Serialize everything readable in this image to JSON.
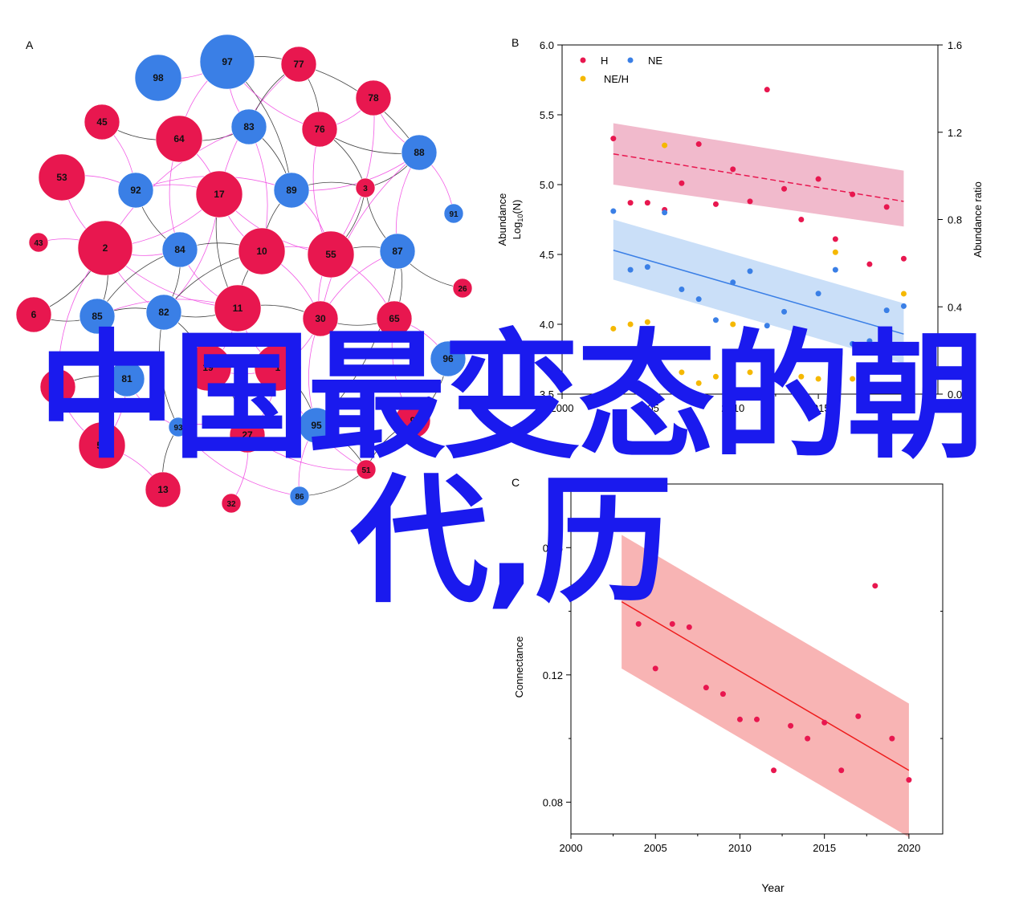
{
  "colors": {
    "red": "#e8174f",
    "blue": "#3a7fe6",
    "yellow": "#f5b800",
    "pink_band": "#efb3c7",
    "blue_band": "#c4dcf7",
    "red_band": "#f8b0b0",
    "edge_magenta": "#f03ce0",
    "edge_black": "#222222",
    "title_blue": "#1a1aee"
  },
  "overlay_title": "中国最变态的朝代,历",
  "chart_data": [
    {
      "panel": "A",
      "type": "network",
      "panel_label": "A",
      "nodes": [
        {
          "id": "97",
          "group": "blue",
          "size": 4
        },
        {
          "id": "98",
          "group": "blue",
          "size": 3
        },
        {
          "id": "77",
          "group": "red",
          "size": 2
        },
        {
          "id": "78",
          "group": "red",
          "size": 2
        },
        {
          "id": "45",
          "group": "red",
          "size": 2
        },
        {
          "id": "64",
          "group": "red",
          "size": 3
        },
        {
          "id": "83",
          "group": "blue",
          "size": 2
        },
        {
          "id": "76",
          "group": "red",
          "size": 2
        },
        {
          "id": "88",
          "group": "blue",
          "size": 2
        },
        {
          "id": "53",
          "group": "red",
          "size": 3
        },
        {
          "id": "92",
          "group": "blue",
          "size": 2
        },
        {
          "id": "17",
          "group": "red",
          "size": 3
        },
        {
          "id": "89",
          "group": "blue",
          "size": 2
        },
        {
          "id": "3",
          "group": "red",
          "size": 1
        },
        {
          "id": "91",
          "group": "blue",
          "size": 1
        },
        {
          "id": "43",
          "group": "red",
          "size": 1
        },
        {
          "id": "2",
          "group": "red",
          "size": 4
        },
        {
          "id": "84",
          "group": "blue",
          "size": 2
        },
        {
          "id": "10",
          "group": "red",
          "size": 3
        },
        {
          "id": "55",
          "group": "red",
          "size": 3
        },
        {
          "id": "87",
          "group": "blue",
          "size": 2
        },
        {
          "id": "26",
          "group": "red",
          "size": 1
        },
        {
          "id": "6",
          "group": "red",
          "size": 2
        },
        {
          "id": "85",
          "group": "blue",
          "size": 2
        },
        {
          "id": "82",
          "group": "blue",
          "size": 2
        },
        {
          "id": "11",
          "group": "red",
          "size": 3
        },
        {
          "id": "30",
          "group": "red",
          "size": 2
        },
        {
          "id": "65",
          "group": "red",
          "size": 2
        },
        {
          "id": "96",
          "group": "blue",
          "size": 2
        },
        {
          "id": "81",
          "group": "blue",
          "size": 2
        },
        {
          "id": "19",
          "group": "red",
          "size": 3
        },
        {
          "id": "1",
          "group": "red",
          "size": 3
        },
        {
          "id": "9",
          "group": "red",
          "size": 2
        },
        {
          "id": "93",
          "group": "blue",
          "size": 1
        },
        {
          "id": "27",
          "group": "red",
          "size": 2
        },
        {
          "id": "95",
          "group": "blue",
          "size": 2
        },
        {
          "id": "51",
          "group": "red",
          "size": 1
        },
        {
          "id": "13",
          "group": "red",
          "size": 2
        },
        {
          "id": "32",
          "group": "red",
          "size": 1
        },
        {
          "id": "86",
          "group": "blue",
          "size": 1
        },
        {
          "id": "7",
          "group": "red",
          "size": 2
        },
        {
          "id": "58",
          "group": "red",
          "size": 3
        }
      ],
      "edges": [
        [
          "97",
          "77",
          "k"
        ],
        [
          "97",
          "83",
          "m"
        ],
        [
          "97",
          "98",
          "m"
        ],
        [
          "97",
          "64",
          "m"
        ],
        [
          "97",
          "89",
          "k"
        ],
        [
          "97",
          "76",
          "m"
        ],
        [
          "77",
          "88",
          "k"
        ],
        [
          "77",
          "17",
          "m"
        ],
        [
          "77",
          "76",
          "k"
        ],
        [
          "77",
          "83",
          "k"
        ],
        [
          "78",
          "76",
          "m"
        ],
        [
          "78",
          "88",
          "m"
        ],
        [
          "78",
          "55",
          "m"
        ],
        [
          "45",
          "64",
          "k"
        ],
        [
          "45",
          "92",
          "m"
        ],
        [
          "64",
          "83",
          "k"
        ],
        [
          "64",
          "17",
          "m"
        ],
        [
          "64",
          "84",
          "m"
        ],
        [
          "83",
          "89",
          "k"
        ],
        [
          "83",
          "2",
          "m"
        ],
        [
          "83",
          "10",
          "m"
        ],
        [
          "76",
          "88",
          "k"
        ],
        [
          "76",
          "3",
          "k"
        ],
        [
          "76",
          "55",
          "m"
        ],
        [
          "88",
          "3",
          "k"
        ],
        [
          "88",
          "87",
          "m"
        ],
        [
          "88",
          "89",
          "m"
        ],
        [
          "88",
          "30",
          "m"
        ],
        [
          "53",
          "92",
          "m"
        ],
        [
          "53",
          "2",
          "m"
        ],
        [
          "92",
          "17",
          "m"
        ],
        [
          "92",
          "84",
          "k"
        ],
        [
          "92",
          "89",
          "m"
        ],
        [
          "17",
          "10",
          "m"
        ],
        [
          "17",
          "2",
          "m"
        ],
        [
          "17",
          "55",
          "m"
        ],
        [
          "17",
          "82",
          "m"
        ],
        [
          "17",
          "11",
          "k"
        ],
        [
          "89",
          "3",
          "k"
        ],
        [
          "89",
          "10",
          "k"
        ],
        [
          "89",
          "55",
          "m"
        ],
        [
          "3",
          "87",
          "k"
        ],
        [
          "3",
          "55",
          "k"
        ],
        [
          "91",
          "88",
          "m"
        ],
        [
          "43",
          "2",
          "m"
        ],
        [
          "2",
          "84",
          "m"
        ],
        [
          "2",
          "85",
          "k"
        ],
        [
          "2",
          "82",
          "m"
        ],
        [
          "2",
          "6",
          "k"
        ],
        [
          "2",
          "11",
          "m"
        ],
        [
          "84",
          "10",
          "k"
        ],
        [
          "84",
          "85",
          "k"
        ],
        [
          "84",
          "82",
          "k"
        ],
        [
          "84",
          "11",
          "m"
        ],
        [
          "10",
          "55",
          "m"
        ],
        [
          "10",
          "11",
          "k"
        ],
        [
          "10",
          "30",
          "m"
        ],
        [
          "10",
          "82",
          "k"
        ],
        [
          "55",
          "87",
          "k"
        ],
        [
          "55",
          "30",
          "m"
        ],
        [
          "55",
          "65",
          "m"
        ],
        [
          "87",
          "26",
          "k"
        ],
        [
          "87",
          "65",
          "k"
        ],
        [
          "87",
          "30",
          "m"
        ],
        [
          "87",
          "95",
          "k"
        ],
        [
          "6",
          "85",
          "k"
        ],
        [
          "85",
          "82",
          "k"
        ],
        [
          "85",
          "81",
          "k"
        ],
        [
          "85",
          "11",
          "m"
        ],
        [
          "82",
          "11",
          "k"
        ],
        [
          "82",
          "19",
          "k"
        ],
        [
          "82",
          "93",
          "k"
        ],
        [
          "11",
          "30",
          "k"
        ],
        [
          "11",
          "1",
          "m"
        ],
        [
          "11",
          "19",
          "m"
        ],
        [
          "30",
          "65",
          "k"
        ],
        [
          "30",
          "1",
          "m"
        ],
        [
          "30",
          "95",
          "m"
        ],
        [
          "65",
          "96",
          "m"
        ],
        [
          "65",
          "9",
          "m"
        ],
        [
          "96",
          "9",
          "k"
        ],
        [
          "81",
          "7",
          "k"
        ],
        [
          "81",
          "58",
          "m"
        ],
        [
          "81",
          "93",
          "m"
        ],
        [
          "19",
          "27",
          "k"
        ],
        [
          "19",
          "1",
          "m"
        ],
        [
          "1",
          "95",
          "k"
        ],
        [
          "1",
          "51",
          "m"
        ],
        [
          "1",
          "27",
          "m"
        ],
        [
          "9",
          "51",
          "k"
        ],
        [
          "95",
          "51",
          "k"
        ],
        [
          "95",
          "86",
          "m"
        ],
        [
          "93",
          "27",
          "m"
        ],
        [
          "93",
          "13",
          "k"
        ],
        [
          "27",
          "32",
          "m"
        ],
        [
          "27",
          "51",
          "m"
        ],
        [
          "51",
          "86",
          "k"
        ],
        [
          "7",
          "58",
          "m"
        ],
        [
          "58",
          "13",
          "m"
        ],
        [
          "58",
          "85",
          "m"
        ],
        [
          "7",
          "2",
          "m"
        ],
        [
          "93",
          "86",
          "m"
        ]
      ]
    },
    {
      "panel": "B",
      "type": "scatter",
      "panel_label": "B",
      "x_ticks": [
        "2000",
        "2005",
        "2010",
        "2015",
        "2020"
      ],
      "xlim": [
        2000,
        2022
      ],
      "ylim": [
        3.5,
        6.0
      ],
      "y_ticks": [
        "3.5",
        "4.0",
        "4.5",
        "5.0",
        "5.5",
        "6.0"
      ],
      "y2lim": [
        0.0,
        1.6
      ],
      "y2_ticks": [
        "0.0",
        "0.4",
        "0.8",
        "1.2",
        "1.6"
      ],
      "ylabel_line1": "Abundance",
      "ylabel_line2_main": "Log",
      "ylabel_line2_sub": "10",
      "ylabel_line2_end": "(N)",
      "y2label": "Abundance ratio",
      "xlabel": "Year",
      "legend": [
        "H",
        "NE",
        "NE/H"
      ],
      "legend_position": "top-left",
      "series": [
        {
          "name": "H",
          "color": "red",
          "axis": "left",
          "x": [
            2003,
            2004,
            2005,
            2006,
            2007,
            2008,
            2009,
            2010,
            2011,
            2012,
            2013,
            2014,
            2015,
            2016,
            2017,
            2018,
            2019,
            2020
          ],
          "y": [
            5.33,
            4.87,
            4.87,
            4.82,
            5.01,
            5.29,
            4.86,
            5.11,
            4.88,
            5.68,
            4.97,
            4.75,
            5.04,
            4.61,
            4.93,
            4.43,
            4.84,
            4.47
          ],
          "trend": [
            5.22,
            4.88
          ],
          "band_lo": [
            5.0,
            4.7
          ],
          "band_hi": [
            5.44,
            5.1
          ]
        },
        {
          "name": "NE",
          "color": "blue",
          "axis": "left",
          "x": [
            2003,
            2004,
            2005,
            2006,
            2007,
            2008,
            2009,
            2010,
            2011,
            2012,
            2013,
            2014,
            2015,
            2016,
            2017,
            2018,
            2019,
            2020
          ],
          "y": [
            4.81,
            4.39,
            4.41,
            4.8,
            4.25,
            4.18,
            4.03,
            4.3,
            4.38,
            3.99,
            4.09,
            3.9,
            4.22,
            4.39,
            3.86,
            3.88,
            4.1,
            4.13
          ],
          "trend": [
            4.53,
            3.93
          ],
          "band_lo": [
            4.32,
            3.72
          ],
          "band_hi": [
            4.75,
            4.15
          ]
        },
        {
          "name": "NE/H",
          "color": "yellow",
          "axis": "right",
          "x": [
            2003,
            2004,
            2005,
            2006,
            2007,
            2008,
            2009,
            2010,
            2011,
            2012,
            2013,
            2014,
            2015,
            2016,
            2017,
            2018,
            2019,
            2020
          ],
          "y": [
            0.3,
            0.32,
            0.33,
            1.14,
            0.1,
            0.05,
            0.08,
            0.32,
            0.1,
            0.08,
            0.06,
            0.08,
            0.07,
            0.65,
            0.07,
            0.04,
            0.12,
            0.46
          ]
        }
      ]
    },
    {
      "panel": "C",
      "type": "scatter",
      "panel_label": "C",
      "x_ticks": [
        "2000",
        "2005",
        "2010",
        "2015",
        "2020"
      ],
      "xlim": [
        2000,
        2022
      ],
      "ylim": [
        0.07,
        0.18
      ],
      "y_ticks": [
        "0.08",
        "0.12",
        "0.16"
      ],
      "ylabel": "Connectance",
      "xlabel": "Year",
      "series": [
        {
          "name": "Connectance",
          "color": "red",
          "x": [
            2003,
            2004,
            2005,
            2006,
            2007,
            2008,
            2009,
            2010,
            2011,
            2012,
            2013,
            2014,
            2015,
            2016,
            2017,
            2018,
            2019,
            2020
          ],
          "y": [
            0.18,
            0.136,
            0.122,
            0.136,
            0.135,
            0.116,
            0.114,
            0.106,
            0.106,
            0.09,
            0.104,
            0.1,
            0.105,
            0.09,
            0.107,
            0.148,
            0.1,
            0.087
          ],
          "trend": [
            0.143,
            0.09
          ],
          "band_lo": [
            0.122,
            0.069
          ],
          "band_hi": [
            0.164,
            0.111
          ]
        }
      ]
    }
  ]
}
